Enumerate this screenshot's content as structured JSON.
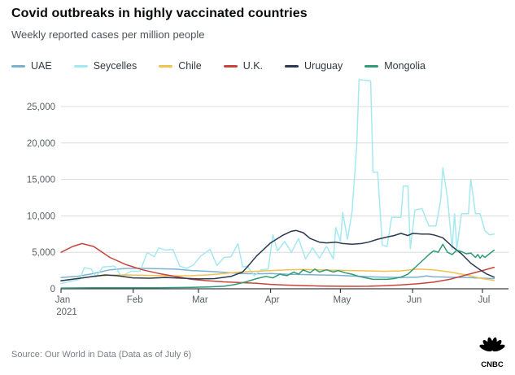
{
  "header": {
    "title": "Covid outbreaks in highly vaccinated countries",
    "subtitle": "Weekly reported cases per million people"
  },
  "footer": {
    "source": "Source: Our World in Data (Data as of July 6)",
    "logo_text": "CNBC"
  },
  "colors": {
    "background": "#ffffff",
    "title_text": "#07090b",
    "subtitle_text": "#4d5256",
    "axis_text": "#5b6065",
    "gridline": "#dcdcdd",
    "axis_line": "#3a3f44",
    "source_text": "#7a7f84",
    "logo": "#000000"
  },
  "chart_data": {
    "type": "line",
    "title": "Covid outbreaks in highly vaccinated countries",
    "subtitle": "Weekly reported cases per million people",
    "xlabel": "",
    "ylabel": "Weekly reported cases per million people",
    "x_unit": "days since Jan 1, 2021",
    "ylim": [
      0,
      29000
    ],
    "grid": "horizontal",
    "legend_position": "top",
    "y_ticks": [
      {
        "value": 0,
        "label": "0"
      },
      {
        "value": 5000,
        "label": "5,000"
      },
      {
        "value": 10000,
        "label": "10,000"
      },
      {
        "value": 15000,
        "label": "15,000"
      },
      {
        "value": 20000,
        "label": "20,000"
      },
      {
        "value": 25000,
        "label": "25,000"
      }
    ],
    "x_ticks": [
      {
        "day": 0,
        "label": "Jan",
        "sublabel": "2021"
      },
      {
        "day": 31,
        "label": "Feb"
      },
      {
        "day": 59,
        "label": "Mar"
      },
      {
        "day": 90,
        "label": "Apr"
      },
      {
        "day": 120,
        "label": "May"
      },
      {
        "day": 151,
        "label": "Jun"
      },
      {
        "day": 181,
        "label": "Jul"
      }
    ],
    "series": [
      {
        "id": "uae",
        "name": "UAE",
        "color": "#79b2cf",
        "points": [
          [
            0,
            1550
          ],
          [
            7,
            1700
          ],
          [
            14,
            2100
          ],
          [
            21,
            2600
          ],
          [
            28,
            2800
          ],
          [
            35,
            2800
          ],
          [
            42,
            2750
          ],
          [
            49,
            2700
          ],
          [
            56,
            2500
          ],
          [
            63,
            2400
          ],
          [
            70,
            2250
          ],
          [
            77,
            2100
          ],
          [
            84,
            2050
          ],
          [
            90,
            2100
          ],
          [
            97,
            2000
          ],
          [
            104,
            1950
          ],
          [
            111,
            1900
          ],
          [
            118,
            1850
          ],
          [
            125,
            1750
          ],
          [
            132,
            1650
          ],
          [
            139,
            1600
          ],
          [
            146,
            1550
          ],
          [
            153,
            1600
          ],
          [
            157,
            1750
          ],
          [
            160,
            1650
          ],
          [
            167,
            1600
          ],
          [
            174,
            1550
          ],
          [
            181,
            1450
          ],
          [
            186,
            1400
          ]
        ]
      },
      {
        "id": "seycelles",
        "name": "Seycelles",
        "color": "#a5e9f0",
        "points": [
          [
            0,
            700
          ],
          [
            4,
            1000
          ],
          [
            8,
            1300
          ],
          [
            10,
            2900
          ],
          [
            13,
            2700
          ],
          [
            15,
            1600
          ],
          [
            18,
            3000
          ],
          [
            23,
            3100
          ],
          [
            26,
            1700
          ],
          [
            30,
            2400
          ],
          [
            34,
            2400
          ],
          [
            37,
            5000
          ],
          [
            40,
            4400
          ],
          [
            42,
            5600
          ],
          [
            45,
            5300
          ],
          [
            48,
            5400
          ],
          [
            51,
            3100
          ],
          [
            54,
            2800
          ],
          [
            57,
            3300
          ],
          [
            60,
            4500
          ],
          [
            64,
            5400
          ],
          [
            67,
            3200
          ],
          [
            70,
            4300
          ],
          [
            73,
            4400
          ],
          [
            76,
            6200
          ],
          [
            78,
            3000
          ],
          [
            80,
            3100
          ],
          [
            83,
            1800
          ],
          [
            86,
            2600
          ],
          [
            89,
            2700
          ],
          [
            91,
            7400
          ],
          [
            93,
            5200
          ],
          [
            96,
            6500
          ],
          [
            99,
            5000
          ],
          [
            102,
            6900
          ],
          [
            105,
            4100
          ],
          [
            108,
            5600
          ],
          [
            111,
            4200
          ],
          [
            114,
            5800
          ],
          [
            117,
            4100
          ],
          [
            118,
            8400
          ],
          [
            120,
            6500
          ],
          [
            121,
            10500
          ],
          [
            123,
            6800
          ],
          [
            125,
            10500
          ],
          [
            127,
            19700
          ],
          [
            128,
            28700
          ],
          [
            133,
            28500
          ],
          [
            134,
            16000
          ],
          [
            136,
            16000
          ],
          [
            138,
            6000
          ],
          [
            140,
            5800
          ],
          [
            142,
            9800
          ],
          [
            146,
            9800
          ],
          [
            147,
            14100
          ],
          [
            149,
            14100
          ],
          [
            150,
            5500
          ],
          [
            152,
            10800
          ],
          [
            155,
            11000
          ],
          [
            158,
            8600
          ],
          [
            161,
            8600
          ],
          [
            163,
            12000
          ],
          [
            164,
            16600
          ],
          [
            166,
            12400
          ],
          [
            168,
            5400
          ],
          [
            169,
            10300
          ],
          [
            170,
            5500
          ],
          [
            172,
            10300
          ],
          [
            175,
            10300
          ],
          [
            176,
            15000
          ],
          [
            178,
            10300
          ],
          [
            180,
            10300
          ],
          [
            182,
            8000
          ],
          [
            184,
            7400
          ],
          [
            186,
            7500
          ]
        ]
      },
      {
        "id": "chile",
        "name": "Chile",
        "color": "#f2c14e",
        "points": [
          [
            0,
            1100
          ],
          [
            7,
            1400
          ],
          [
            14,
            1700
          ],
          [
            21,
            1850
          ],
          [
            28,
            1900
          ],
          [
            35,
            1850
          ],
          [
            42,
            1800
          ],
          [
            49,
            1750
          ],
          [
            56,
            1800
          ],
          [
            63,
            1900
          ],
          [
            70,
            2100
          ],
          [
            77,
            2300
          ],
          [
            84,
            2400
          ],
          [
            90,
            2500
          ],
          [
            97,
            2600
          ],
          [
            104,
            2650
          ],
          [
            111,
            2600
          ],
          [
            118,
            2550
          ],
          [
            125,
            2500
          ],
          [
            132,
            2450
          ],
          [
            139,
            2400
          ],
          [
            146,
            2450
          ],
          [
            153,
            2700
          ],
          [
            160,
            2600
          ],
          [
            167,
            2300
          ],
          [
            174,
            1900
          ],
          [
            181,
            1400
          ],
          [
            186,
            1150
          ]
        ]
      },
      {
        "id": "uk",
        "name": "U.K.",
        "color": "#c8443b",
        "points": [
          [
            0,
            5000
          ],
          [
            5,
            5800
          ],
          [
            9,
            6200
          ],
          [
            14,
            5800
          ],
          [
            21,
            4300
          ],
          [
            28,
            3300
          ],
          [
            35,
            2600
          ],
          [
            42,
            2100
          ],
          [
            49,
            1700
          ],
          [
            56,
            1300
          ],
          [
            63,
            1100
          ],
          [
            70,
            950
          ],
          [
            77,
            850
          ],
          [
            84,
            750
          ],
          [
            90,
            600
          ],
          [
            97,
            500
          ],
          [
            104,
            430
          ],
          [
            111,
            380
          ],
          [
            118,
            350
          ],
          [
            125,
            330
          ],
          [
            132,
            350
          ],
          [
            139,
            420
          ],
          [
            146,
            520
          ],
          [
            153,
            680
          ],
          [
            160,
            900
          ],
          [
            167,
            1300
          ],
          [
            174,
            1900
          ],
          [
            181,
            2500
          ],
          [
            186,
            2950
          ]
        ]
      },
      {
        "id": "uruguay",
        "name": "Uruguay",
        "color": "#2a3950",
        "points": [
          [
            0,
            1100
          ],
          [
            7,
            1400
          ],
          [
            14,
            1700
          ],
          [
            19,
            1900
          ],
          [
            24,
            1800
          ],
          [
            31,
            1500
          ],
          [
            38,
            1450
          ],
          [
            45,
            1550
          ],
          [
            52,
            1450
          ],
          [
            59,
            1350
          ],
          [
            66,
            1400
          ],
          [
            73,
            1700
          ],
          [
            78,
            2300
          ],
          [
            80,
            3000
          ],
          [
            84,
            4500
          ],
          [
            90,
            6300
          ],
          [
            95,
            7300
          ],
          [
            99,
            7900
          ],
          [
            101,
            8000
          ],
          [
            104,
            7700
          ],
          [
            107,
            6900
          ],
          [
            111,
            6400
          ],
          [
            114,
            6300
          ],
          [
            118,
            6400
          ],
          [
            121,
            6200
          ],
          [
            125,
            6100
          ],
          [
            129,
            6200
          ],
          [
            132,
            6400
          ],
          [
            136,
            6800
          ],
          [
            140,
            7100
          ],
          [
            143,
            7300
          ],
          [
            146,
            7600
          ],
          [
            149,
            7300
          ],
          [
            151,
            7600
          ],
          [
            155,
            7500
          ],
          [
            158,
            7500
          ],
          [
            160,
            7400
          ],
          [
            164,
            7000
          ],
          [
            168,
            5800
          ],
          [
            172,
            4800
          ],
          [
            176,
            3500
          ],
          [
            180,
            2600
          ],
          [
            183,
            2000
          ],
          [
            186,
            1600
          ]
        ]
      },
      {
        "id": "mongolia",
        "name": "Mongolia",
        "color": "#2f9b78",
        "points": [
          [
            0,
            100
          ],
          [
            14,
            150
          ],
          [
            28,
            150
          ],
          [
            42,
            150
          ],
          [
            56,
            200
          ],
          [
            63,
            250
          ],
          [
            70,
            350
          ],
          [
            75,
            600
          ],
          [
            80,
            1000
          ],
          [
            84,
            1400
          ],
          [
            88,
            1700
          ],
          [
            91,
            1500
          ],
          [
            94,
            2000
          ],
          [
            97,
            1800
          ],
          [
            100,
            2300
          ],
          [
            102,
            2000
          ],
          [
            104,
            2600
          ],
          [
            107,
            2200
          ],
          [
            109,
            2700
          ],
          [
            111,
            2300
          ],
          [
            114,
            2600
          ],
          [
            117,
            2300
          ],
          [
            119,
            2500
          ],
          [
            122,
            2200
          ],
          [
            125,
            2000
          ],
          [
            128,
            1700
          ],
          [
            131,
            1500
          ],
          [
            134,
            1300
          ],
          [
            137,
            1300
          ],
          [
            140,
            1300
          ],
          [
            143,
            1400
          ],
          [
            146,
            1600
          ],
          [
            149,
            2000
          ],
          [
            152,
            2900
          ],
          [
            155,
            3800
          ],
          [
            158,
            4700
          ],
          [
            160,
            5200
          ],
          [
            162,
            5000
          ],
          [
            164,
            6100
          ],
          [
            166,
            5000
          ],
          [
            168,
            4700
          ],
          [
            170,
            5300
          ],
          [
            172,
            5100
          ],
          [
            174,
            4800
          ],
          [
            176,
            4900
          ],
          [
            178,
            4300
          ],
          [
            179,
            4700
          ],
          [
            180,
            4200
          ],
          [
            181,
            4600
          ],
          [
            182,
            4300
          ],
          [
            184,
            4800
          ],
          [
            186,
            5300
          ]
        ]
      }
    ]
  }
}
